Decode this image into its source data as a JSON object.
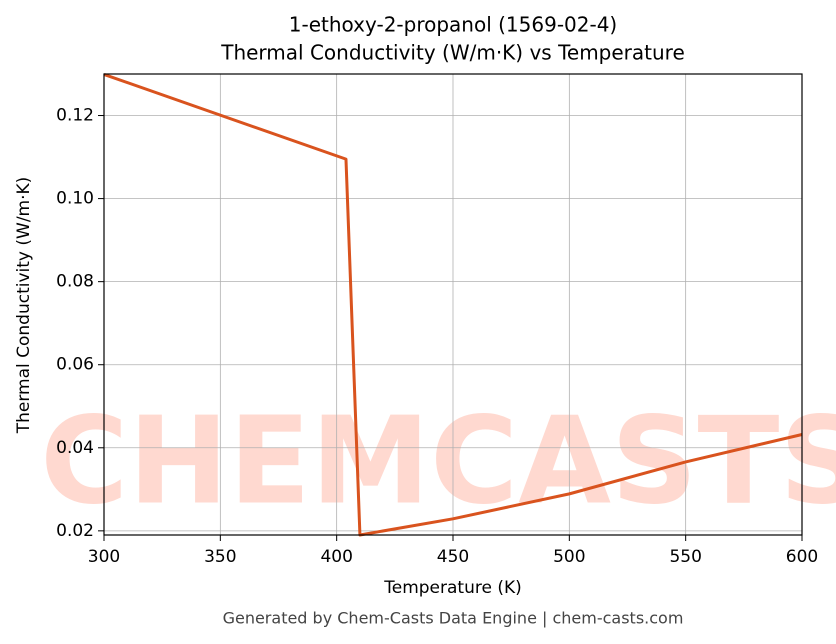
{
  "chart_data": {
    "type": "line",
    "title": "1-ethoxy-2-propanol (1569-02-4)",
    "subtitle": "Thermal Conductivity (W/m·K) vs Temperature",
    "x_label": "Temperature (K)",
    "y_label": "Thermal Conductivity (W/m·K)",
    "watermark": "CHEMCASTS",
    "footer": "Generated by Chem-Casts Data Engine | chem-casts.com",
    "x": [
      300,
      404,
      410,
      450,
      500,
      550,
      600
    ],
    "series": [
      {
        "name": "Thermal Conductivity",
        "color": "#d9531e",
        "values": [
          0.1299,
          0.1095,
          0.019,
          0.0229,
          0.0289,
          0.0366,
          0.0432
        ]
      }
    ],
    "xlim": [
      300,
      600
    ],
    "xticks": [
      300,
      350,
      400,
      450,
      500,
      550,
      600
    ],
    "ylim": [
      0.019,
      0.13
    ],
    "yticks": [
      {
        "value": 0.02,
        "label": "0.02"
      },
      {
        "value": 0.04,
        "label": "0.04"
      },
      {
        "value": 0.06,
        "label": "0.06"
      },
      {
        "value": 0.08,
        "label": "0.08"
      },
      {
        "value": 0.1,
        "label": "0.10"
      },
      {
        "value": 0.12,
        "label": "0.12"
      }
    ],
    "grid": true
  }
}
